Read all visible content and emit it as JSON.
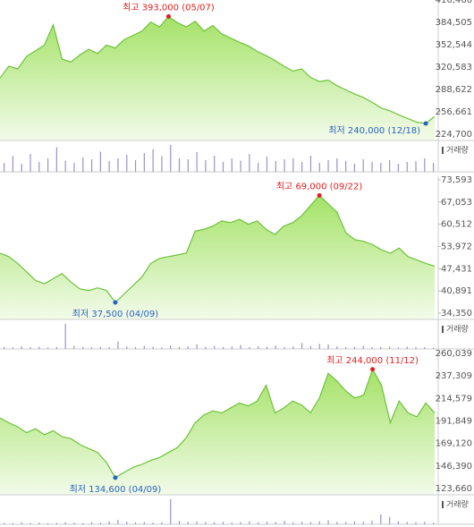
{
  "chart_data": [
    {
      "type": "area",
      "line_color": "#6cc23a",
      "fill_top": "#a4e266",
      "fill_bottom": "#f2fbea",
      "volume_color": "#9c90cc",
      "high_color": "#e0201f",
      "low_color": "#2a62c0",
      "grid": false,
      "ylim": [
        215751,
        416466
      ],
      "yticks": [
        {
          "value": 416466,
          "label": "416,466"
        },
        {
          "value": 384505,
          "label": "384,505"
        },
        {
          "value": 352544,
          "label": "352,544"
        },
        {
          "value": 320583,
          "label": "320,583"
        },
        {
          "value": 288622,
          "label": "288,622"
        },
        {
          "value": 256661,
          "label": "256,661"
        },
        {
          "value": 224700,
          "label": "224,700"
        }
      ],
      "values": [
        305000,
        322000,
        318000,
        336000,
        344000,
        352000,
        381000,
        332000,
        328000,
        338000,
        346000,
        340000,
        352000,
        348000,
        360000,
        366000,
        372000,
        385000,
        378000,
        393000,
        384000,
        378000,
        386000,
        372000,
        380000,
        368000,
        362000,
        356000,
        351000,
        343000,
        337000,
        330000,
        322000,
        315000,
        318000,
        306000,
        300000,
        302000,
        294000,
        288000,
        282000,
        277000,
        270000,
        262000,
        258000,
        252000,
        247000,
        242000,
        240000,
        250000
      ],
      "high_label": "최고 393,000 (05/07)",
      "low_label": "최저 240,000 (12/18)",
      "volume_label": "거래량",
      "volume": [
        20,
        35,
        18,
        40,
        22,
        30,
        55,
        25,
        20,
        32,
        28,
        45,
        24,
        30,
        38,
        26,
        42,
        50,
        35,
        60,
        30,
        28,
        44,
        26,
        36,
        22,
        30,
        25,
        40,
        20,
        34,
        24,
        28,
        30,
        22,
        36,
        20,
        26,
        30,
        24,
        18,
        28,
        22,
        20,
        26,
        18,
        22,
        24,
        30,
        20
      ]
    },
    {
      "type": "area",
      "line_color": "#6cc23a",
      "fill_top": "#a4e266",
      "fill_bottom": "#f2fbea",
      "volume_color": "#9c90cc",
      "high_color": "#e0201f",
      "low_color": "#2a62c0",
      "grid": false,
      "ylim": [
        32504,
        74650
      ],
      "yticks": [
        {
          "value": 73593,
          "label": "73,593"
        },
        {
          "value": 67053,
          "label": "67,053"
        },
        {
          "value": 60512,
          "label": "60,512"
        },
        {
          "value": 53972,
          "label": "53,972"
        },
        {
          "value": 47431,
          "label": "47,431"
        },
        {
          "value": 40891,
          "label": "40,891"
        },
        {
          "value": 34350,
          "label": "34,350"
        }
      ],
      "values": [
        52000,
        51000,
        49000,
        46500,
        44000,
        43000,
        44500,
        46000,
        43500,
        41500,
        41000,
        41800,
        41000,
        37500,
        40000,
        42500,
        45000,
        49000,
        50500,
        51000,
        51500,
        52000,
        58500,
        59000,
        60000,
        61500,
        61000,
        62000,
        60500,
        61500,
        59000,
        57500,
        60000,
        61000,
        63000,
        66000,
        69000,
        66500,
        64000,
        58000,
        56000,
        55500,
        54500,
        53000,
        52000,
        53500,
        51000,
        50000,
        49000,
        48200
      ],
      "high_label": "최고 69,000 (09/22)",
      "low_label": "최저 37,500 (04/09)",
      "volume_label": "거래량",
      "volume": [
        8,
        6,
        10,
        7,
        9,
        6,
        8,
        100,
        12,
        8,
        6,
        9,
        7,
        30,
        10,
        8,
        12,
        9,
        6,
        14,
        8,
        10,
        18,
        9,
        12,
        8,
        10,
        16,
        7,
        11,
        9,
        14,
        8,
        10,
        24,
        12,
        20,
        18,
        10,
        8,
        9,
        12,
        7,
        8,
        10,
        6,
        9,
        8,
        7,
        6
      ]
    },
    {
      "type": "area",
      "line_color": "#6cc23a",
      "fill_top": "#a4e266",
      "fill_bottom": "#f2fbea",
      "volume_color": "#9c90cc",
      "high_color": "#e0201f",
      "low_color": "#2a62c0",
      "grid": false,
      "ylim": [
        117296,
        261857
      ],
      "yticks": [
        {
          "value": 260039,
          "label": "260,039"
        },
        {
          "value": 237309,
          "label": "237,309"
        },
        {
          "value": 214579,
          "label": "214,579"
        },
        {
          "value": 191849,
          "label": "191,849"
        },
        {
          "value": 169120,
          "label": "169,120"
        },
        {
          "value": 146390,
          "label": "146,390"
        },
        {
          "value": 123660,
          "label": "123,660"
        }
      ],
      "values": [
        195000,
        190000,
        186000,
        180000,
        184000,
        178000,
        182000,
        176000,
        174000,
        168000,
        164000,
        160000,
        150000,
        134600,
        140000,
        145000,
        148000,
        152000,
        155000,
        160000,
        165000,
        175000,
        190000,
        198000,
        202000,
        200000,
        205000,
        210000,
        207000,
        212000,
        228000,
        200000,
        205000,
        212000,
        208000,
        200000,
        215000,
        240000,
        232000,
        222000,
        215000,
        218000,
        244000,
        228000,
        190000,
        212000,
        200000,
        196000,
        210000,
        200000
      ],
      "high_label": "최고 244,000 (11/12)",
      "low_label": "최저 134,600 (04/09)",
      "volume_label": "거래량",
      "volume": [
        6,
        5,
        8,
        6,
        7,
        5,
        6,
        8,
        7,
        6,
        9,
        7,
        12,
        18,
        10,
        8,
        9,
        7,
        8,
        100,
        14,
        10,
        12,
        9,
        8,
        10,
        7,
        9,
        12,
        8,
        10,
        9,
        14,
        8,
        10,
        9,
        12,
        16,
        10,
        9,
        12,
        10,
        14,
        40,
        30,
        12,
        9,
        8,
        10,
        7
      ]
    }
  ]
}
